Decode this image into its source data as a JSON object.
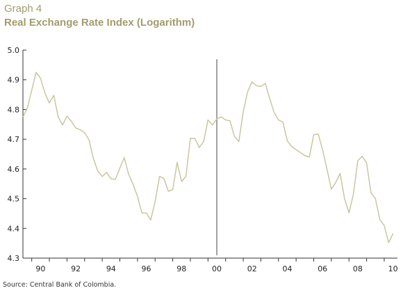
{
  "chart_data": {
    "type": "line",
    "title": "Graph 4",
    "subtitle": "Real Exchange Rate Index (Logarithm)",
    "source": "Source: Central Bank of Colombia.",
    "xlim": [
      1989.5,
      2010.75
    ],
    "ylim": [
      4.3,
      5.0
    ],
    "yticks": [
      4.3,
      4.4,
      4.5,
      4.6,
      4.7,
      4.8,
      4.9,
      5.0
    ],
    "ytick_labels": [
      "4.3",
      "4.4",
      "4.5",
      "4.6",
      "4.7",
      "4.8",
      "4.9",
      "5.0"
    ],
    "xticks": [
      1990,
      1992,
      1994,
      1996,
      1998,
      2000,
      2002,
      2004,
      2006,
      2008,
      2010
    ],
    "xtick_labels": [
      "90",
      "92",
      "94",
      "96",
      "98",
      "00",
      "02",
      "04",
      "06",
      "08",
      "10"
    ],
    "grid": false,
    "vline_x": 2000.5,
    "line_color": "#c9c6a0",
    "series": [
      {
        "x": [
          1989.5,
          1989.75,
          1990.0,
          1990.25,
          1990.5,
          1990.75,
          1991.0,
          1991.25,
          1991.5,
          1991.75,
          1992.0,
          1992.25,
          1992.5,
          1992.75,
          1993.0,
          1993.25,
          1993.5,
          1993.75,
          1994.0,
          1994.25,
          1994.5,
          1994.75,
          1995.0,
          1995.25,
          1995.5,
          1995.75,
          1996.0,
          1996.25,
          1996.5,
          1996.75,
          1997.0,
          1997.25,
          1997.5,
          1997.75,
          1998.0,
          1998.25,
          1998.5,
          1998.75,
          1999.0,
          1999.25,
          1999.5,
          1999.75,
          2000.0,
          2000.25,
          2000.5,
          2000.75,
          2001.0,
          2001.25,
          2001.5,
          2001.75,
          2002.0,
          2002.25,
          2002.5,
          2002.75,
          2003.0,
          2003.25,
          2003.5,
          2003.75,
          2004.0,
          2004.25,
          2004.5,
          2004.75,
          2005.0,
          2005.25,
          2005.5,
          2005.75,
          2006.0,
          2006.25,
          2006.5,
          2006.75,
          2007.0,
          2007.25,
          2007.5,
          2007.75,
          2008.0,
          2008.25,
          2008.5,
          2008.75,
          2009.0,
          2009.25,
          2009.5,
          2009.75,
          2010.0,
          2010.25,
          2010.5
        ],
        "values": [
          4.775,
          4.805,
          4.865,
          4.925,
          4.905,
          4.855,
          4.822,
          4.848,
          4.775,
          4.748,
          4.778,
          4.76,
          4.738,
          4.732,
          4.722,
          4.698,
          4.635,
          4.592,
          4.575,
          4.588,
          4.567,
          4.565,
          4.603,
          4.638,
          4.582,
          4.548,
          4.508,
          4.452,
          4.452,
          4.428,
          4.49,
          4.575,
          4.568,
          4.525,
          4.53,
          4.622,
          4.558,
          4.575,
          4.703,
          4.703,
          4.672,
          4.692,
          4.765,
          4.748,
          4.768,
          4.775,
          4.765,
          4.762,
          4.71,
          4.692,
          4.792,
          4.86,
          4.893,
          4.88,
          4.878,
          4.888,
          4.838,
          4.79,
          4.765,
          4.758,
          4.695,
          4.675,
          4.665,
          4.655,
          4.645,
          4.64,
          4.715,
          4.718,
          4.665,
          4.6,
          4.532,
          4.555,
          4.585,
          4.5,
          4.452,
          4.515,
          4.628,
          4.643,
          4.62,
          4.52,
          4.5,
          4.43,
          4.41,
          4.352,
          4.383
        ]
      }
    ]
  }
}
